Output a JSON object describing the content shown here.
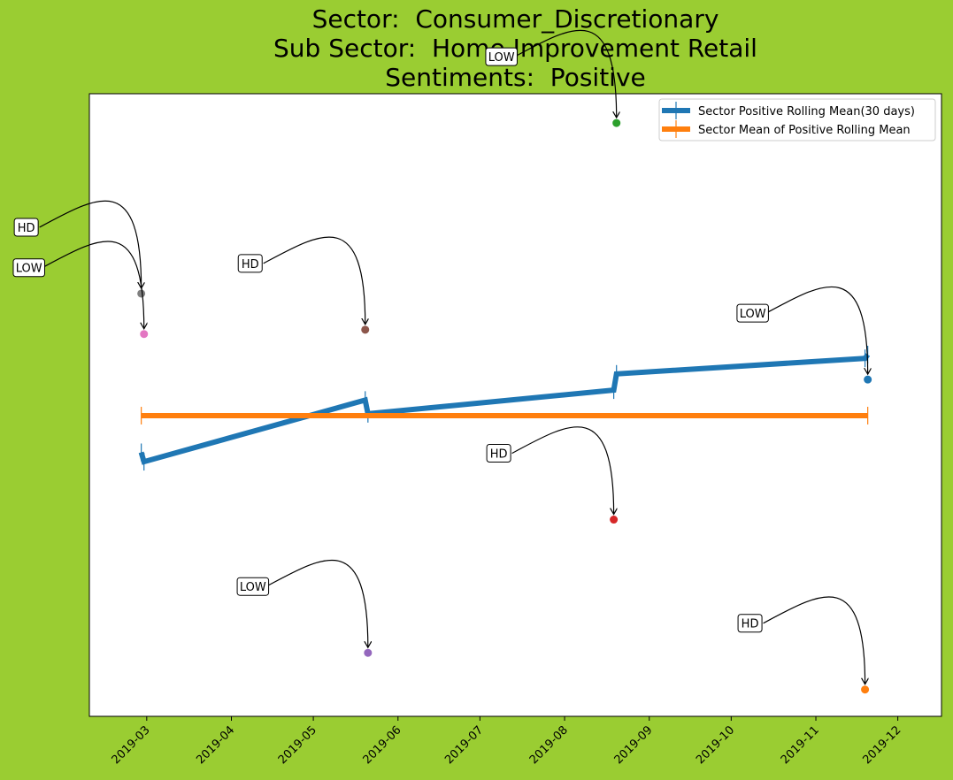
{
  "chart_data": {
    "type": "line",
    "title_lines": [
      "Sector:  Consumer_Discretionary",
      "Sub Sector:  Home Improvement Retail",
      "Sentiments:  Positive"
    ],
    "x_tick_labels": [
      "2019-03",
      "2019-04",
      "2019-05",
      "2019-06",
      "2019-07",
      "2019-08",
      "2019-09",
      "2019-10",
      "2019-11",
      "2019-12"
    ],
    "x_ticks": [
      "2019-03-01",
      "2019-04-01",
      "2019-05-01",
      "2019-06-01",
      "2019-07-01",
      "2019-08-01",
      "2019-09-01",
      "2019-10-01",
      "2019-11-01",
      "2019-12-01"
    ],
    "xlim": [
      "2019-02-08",
      "2019-12-17"
    ],
    "ylim": [
      0,
      100
    ],
    "grid": false,
    "legend_position": "top-right",
    "series": [
      {
        "name": "Sector Positive Rolling Mean(30 days)",
        "color": "#1f77b4",
        "points": [
          {
            "x": "2019-02-27",
            "y": 42.4
          },
          {
            "x": "2019-02-28",
            "y": 40.9
          },
          {
            "x": "2019-05-20",
            "y": 50.8
          },
          {
            "x": "2019-05-21",
            "y": 48.6
          },
          {
            "x": "2019-08-19",
            "y": 52.4
          },
          {
            "x": "2019-08-20",
            "y": 55.0
          },
          {
            "x": "2019-11-19",
            "y": 57.5
          },
          {
            "x": "2019-11-20",
            "y": 58.1
          }
        ]
      },
      {
        "name": "Sector Mean of Positive Rolling Mean",
        "color": "#ff7f0e",
        "points": [
          {
            "x": "2019-02-27",
            "y": 48.3
          },
          {
            "x": "2019-11-20",
            "y": 48.3
          }
        ]
      }
    ],
    "annotations": [
      {
        "label": "HD",
        "x": "2019-02-27",
        "y": 67.9,
        "color": "#7f7f7f"
      },
      {
        "label": "LOW",
        "x": "2019-02-28",
        "y": 61.4,
        "color": "#e377c2"
      },
      {
        "label": "HD",
        "x": "2019-05-20",
        "y": 62.1,
        "color": "#8c564b"
      },
      {
        "label": "LOW",
        "x": "2019-05-21",
        "y": 10.2,
        "color": "#9467bd"
      },
      {
        "label": "LOW",
        "x": "2019-08-20",
        "y": 95.3,
        "color": "#2ca02c"
      },
      {
        "label": "HD",
        "x": "2019-08-19",
        "y": 31.6,
        "color": "#d62728"
      },
      {
        "label": "LOW",
        "x": "2019-11-20",
        "y": 54.1,
        "color": "#1f77b4"
      },
      {
        "label": "HD",
        "x": "2019-11-19",
        "y": 4.3,
        "color": "#ff7f0e"
      }
    ]
  }
}
